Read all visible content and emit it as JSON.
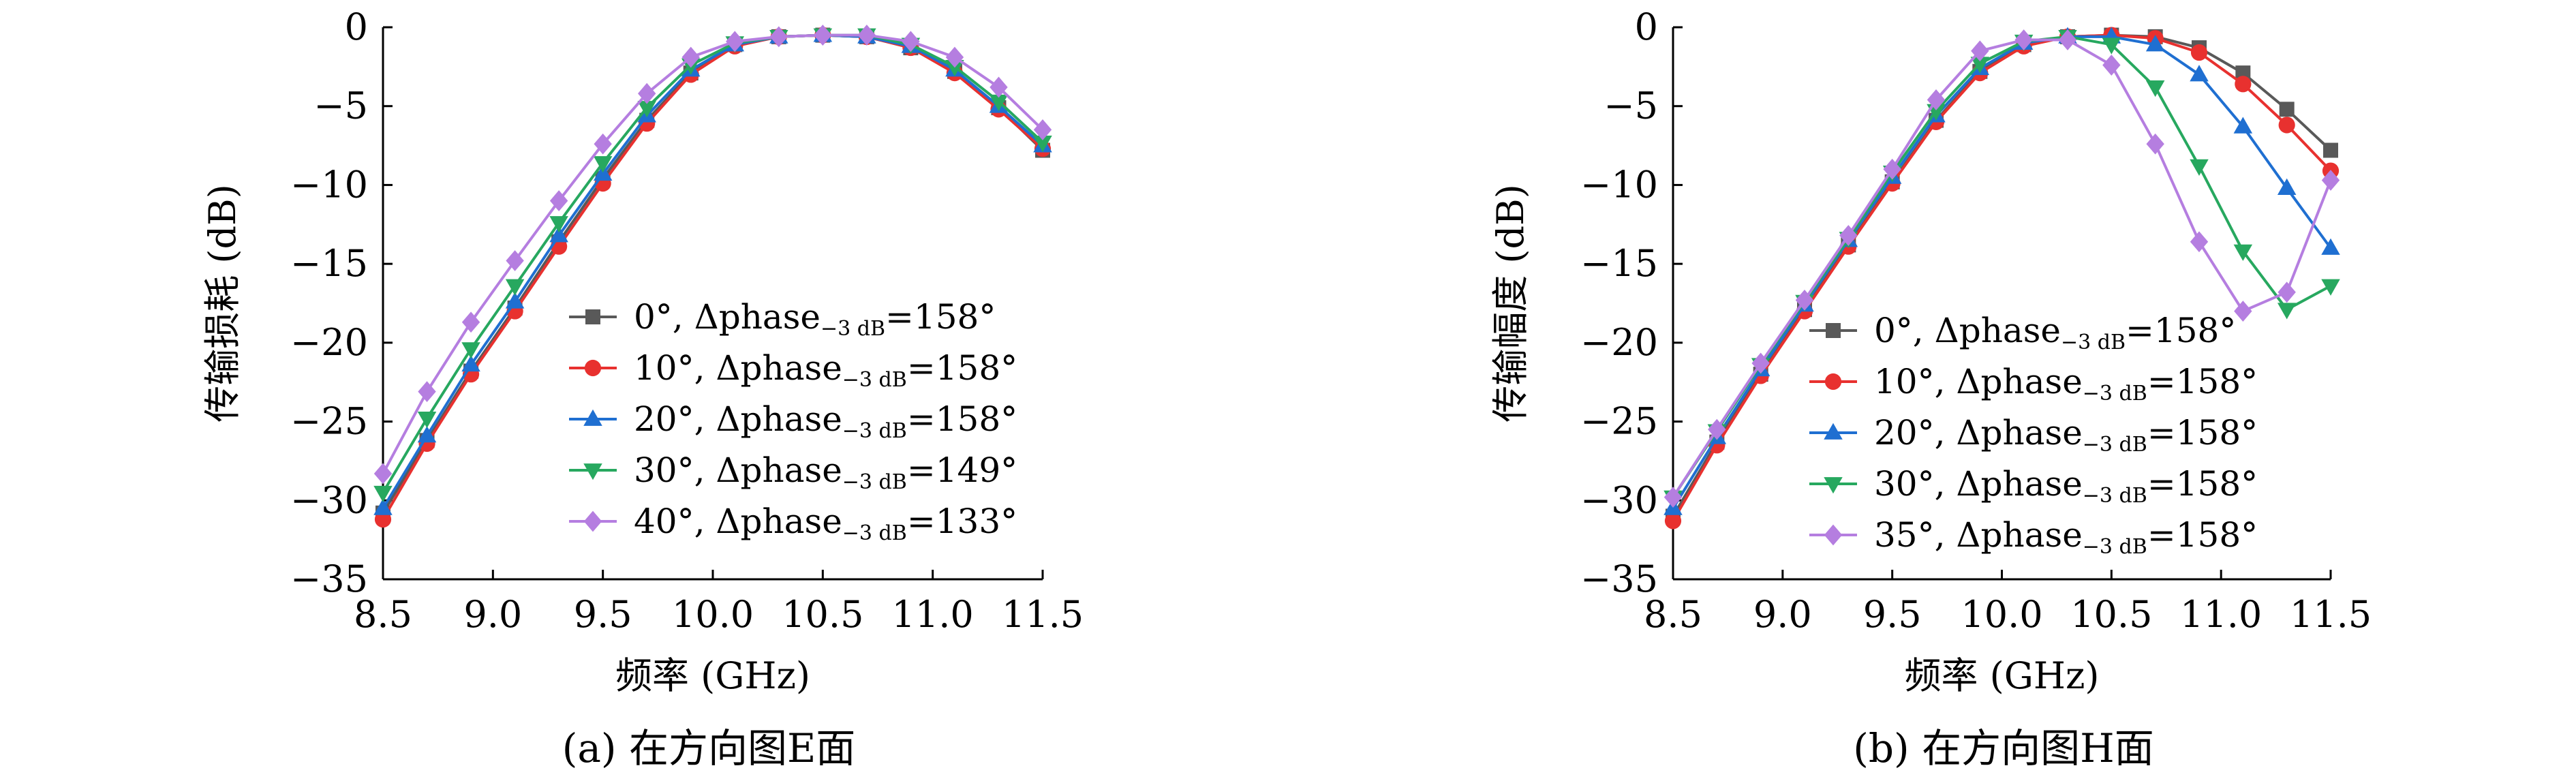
{
  "chart_data": [
    {
      "type": "line",
      "caption": "(a) 在方向图E面",
      "xlabel": "频率 (GHz)",
      "ylabel": "传输损耗 (dB)",
      "xlim": [
        8.5,
        11.5
      ],
      "ylim": [
        -35,
        0
      ],
      "xticks": [
        "8.5",
        "9.0",
        "9.5",
        "10.0",
        "10.5",
        "11.0",
        "11.5"
      ],
      "yticks": [
        "0",
        "−5",
        "−10",
        "−15",
        "−20",
        "−25",
        "−30",
        "−35"
      ],
      "legend_position": "lower-right",
      "x": [
        8.5,
        8.7,
        8.9,
        9.1,
        9.3,
        9.5,
        9.7,
        9.9,
        10.1,
        10.3,
        10.5,
        10.7,
        10.9,
        11.1,
        11.3,
        11.5
      ],
      "series": [
        {
          "name": "0°, Δphase",
          "sub": "−3 dB",
          "tail": "=158°",
          "color": "#595959",
          "marker": "square",
          "values": [
            -30.8,
            -26.2,
            -21.8,
            -17.8,
            -13.6,
            -9.6,
            -5.9,
            -2.9,
            -1.1,
            -0.6,
            -0.5,
            -0.6,
            -1.3,
            -2.8,
            -5.1,
            -7.8
          ]
        },
        {
          "name": "10°, Δphase",
          "sub": "−3 dB",
          "tail": "=158°",
          "color": "#e8312f",
          "marker": "circle",
          "values": [
            -31.2,
            -26.4,
            -22.0,
            -18.0,
            -13.9,
            -9.9,
            -6.1,
            -3.0,
            -1.2,
            -0.6,
            -0.5,
            -0.6,
            -1.3,
            -2.9,
            -5.2,
            -7.7
          ]
        },
        {
          "name": "20°, Δphase",
          "sub": "−3 dB",
          "tail": "=158°",
          "color": "#1f6fd1",
          "marker": "triangle-up",
          "values": [
            -30.5,
            -25.9,
            -21.4,
            -17.4,
            -13.2,
            -9.3,
            -5.6,
            -2.7,
            -1.1,
            -0.6,
            -0.5,
            -0.6,
            -1.2,
            -2.7,
            -5.0,
            -7.5
          ]
        },
        {
          "name": "30°, Δphase",
          "sub": "−3 dB",
          "tail": "=149°",
          "color": "#27a85f",
          "marker": "triangle-down",
          "values": [
            -29.5,
            -24.8,
            -20.4,
            -16.4,
            -12.4,
            -8.6,
            -5.1,
            -2.4,
            -1.0,
            -0.6,
            -0.5,
            -0.5,
            -1.1,
            -2.5,
            -4.7,
            -7.3
          ]
        },
        {
          "name": "40°, Δphase",
          "sub": "−3 dB",
          "tail": "=133°",
          "color": "#b57ee0",
          "marker": "diamond",
          "values": [
            -28.3,
            -23.1,
            -18.7,
            -14.8,
            -11.0,
            -7.4,
            -4.2,
            -1.9,
            -0.9,
            -0.6,
            -0.5,
            -0.5,
            -0.9,
            -1.9,
            -3.8,
            -6.5
          ]
        }
      ]
    },
    {
      "type": "line",
      "caption": "(b) 在方向图H面",
      "xlabel": "频率 (GHz)",
      "ylabel": "传输幅度 (dB)",
      "xlim": [
        8.5,
        11.5
      ],
      "ylim": [
        -35,
        0
      ],
      "xticks": [
        "8.5",
        "9.0",
        "9.5",
        "10.0",
        "10.5",
        "11.0",
        "11.5"
      ],
      "yticks": [
        "0",
        "−5",
        "−10",
        "−15",
        "−20",
        "−25",
        "−30",
        "−35"
      ],
      "legend_position": "lower-left",
      "x": [
        8.5,
        8.7,
        8.9,
        9.1,
        9.3,
        9.5,
        9.7,
        9.9,
        10.1,
        10.3,
        10.5,
        10.7,
        10.9,
        11.1,
        11.3,
        11.5
      ],
      "series": [
        {
          "name": "0°, Δphase",
          "sub": "−3 dB",
          "tail": "=158°",
          "color": "#595959",
          "marker": "square",
          "values": [
            -31.0,
            -26.3,
            -22.0,
            -17.9,
            -13.8,
            -9.8,
            -5.9,
            -2.8,
            -1.1,
            -0.6,
            -0.5,
            -0.6,
            -1.3,
            -2.9,
            -5.2,
            -7.8
          ]
        },
        {
          "name": "10°, Δphase",
          "sub": "−3 dB",
          "tail": "=158°",
          "color": "#e8312f",
          "marker": "circle",
          "values": [
            -31.3,
            -26.5,
            -22.1,
            -18.0,
            -13.9,
            -9.9,
            -6.0,
            -2.9,
            -1.2,
            -0.6,
            -0.5,
            -0.7,
            -1.6,
            -3.6,
            -6.2,
            -9.1
          ]
        },
        {
          "name": "20°, Δphase",
          "sub": "−3 dB",
          "tail": "=158°",
          "color": "#1f6fd1",
          "marker": "triangle-up",
          "values": [
            -30.5,
            -26.0,
            -21.7,
            -17.6,
            -13.5,
            -9.5,
            -5.6,
            -2.6,
            -1.0,
            -0.6,
            -0.6,
            -1.1,
            -3.0,
            -6.3,
            -10.2,
            -14.0
          ]
        },
        {
          "name": "30°, Δphase",
          "sub": "−3 dB",
          "tail": "=158°",
          "color": "#27a85f",
          "marker": "triangle-down",
          "values": [
            -29.8,
            -25.6,
            -21.4,
            -17.4,
            -13.4,
            -9.2,
            -5.3,
            -2.3,
            -0.9,
            -0.6,
            -1.1,
            -3.8,
            -8.8,
            -14.2,
            -17.9,
            -16.4
          ]
        },
        {
          "name": "35°, Δphase",
          "sub": "−3 dB",
          "tail": "=158°",
          "color": "#b57ee0",
          "marker": "diamond",
          "values": [
            -29.8,
            -25.5,
            -21.3,
            -17.3,
            -13.2,
            -9.0,
            -4.6,
            -1.5,
            -0.8,
            -0.8,
            -2.4,
            -7.4,
            -13.6,
            -18.0,
            -16.8,
            -9.7
          ]
        }
      ]
    }
  ]
}
